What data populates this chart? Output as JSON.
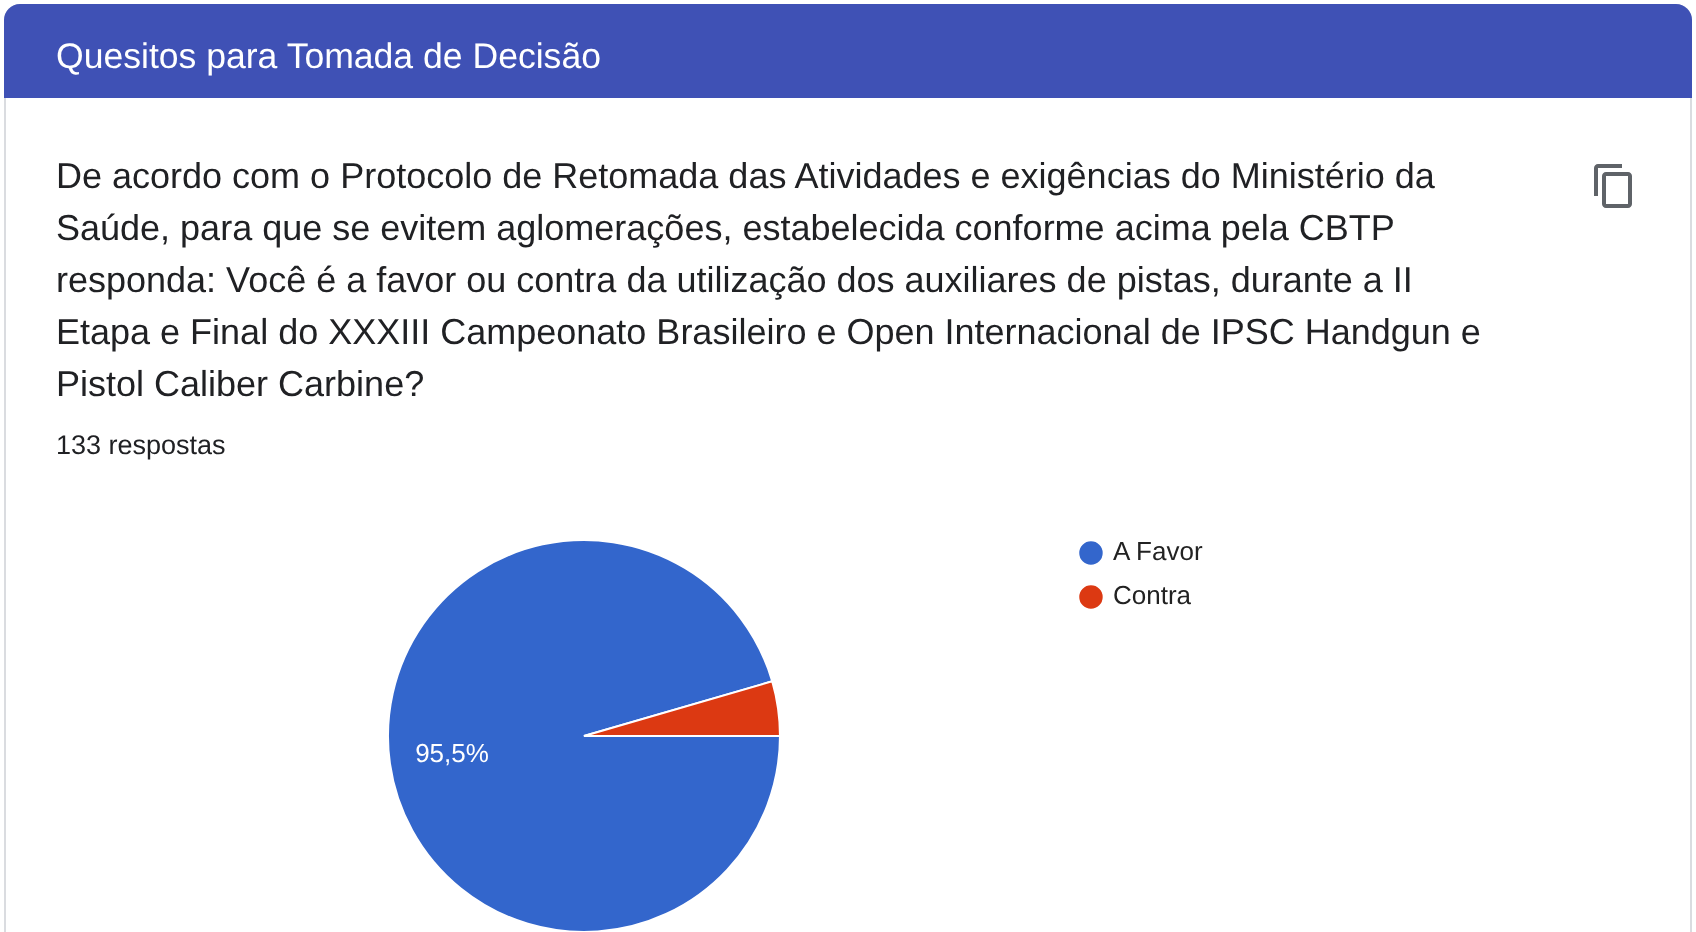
{
  "chart_data": {
    "type": "pie",
    "title": "Quesitos para Tomada de Decisão",
    "subtitle": "De acordo com o Protocolo de Retomada das Atividades e exigências do Ministério da Saúde, para que se evitem aglomerações, estabelecida conforme acima pela CBTP responda: Você é a favor ou contra da utilização dos auxiliares de pistas, durante a II Etapa e Final do XXXIII Campeonato Brasileiro e Open Internacional de IPSC Handgun e Pistol Caliber Carbine?",
    "annotations": [
      "133 respostas"
    ],
    "categories": [
      "A Favor",
      "Contra"
    ],
    "values": [
      95.5,
      4.5
    ],
    "colors": [
      "#3366cc",
      "#dc3912"
    ],
    "value_labels": [
      "95,5%",
      null
    ],
    "legend": "top right"
  }
}
